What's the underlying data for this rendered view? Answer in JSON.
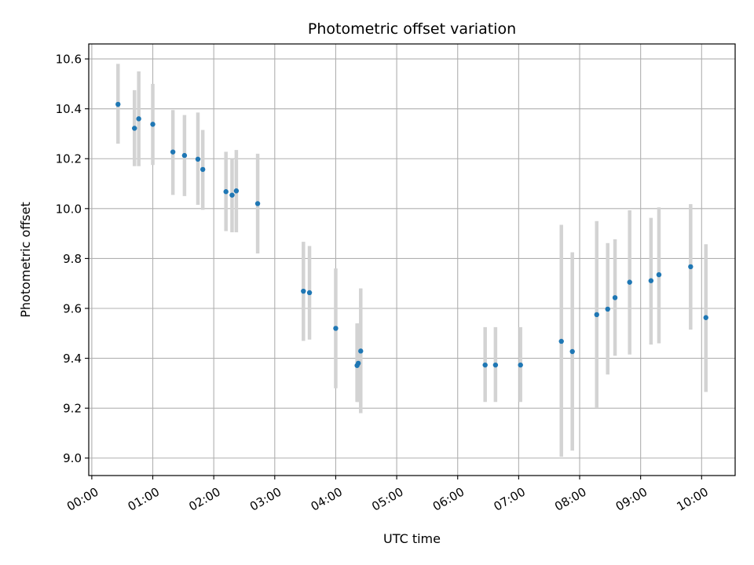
{
  "chart_data": {
    "type": "scatter",
    "title": "Photometric offset variation",
    "xlabel": "UTC time",
    "ylabel": "Photometric offset",
    "x_unit": "hours",
    "xlim": [
      -0.05,
      10.55
    ],
    "ylim": [
      8.93,
      10.66
    ],
    "x_ticks": [
      {
        "value": 0,
        "label": "00:00"
      },
      {
        "value": 1,
        "label": "01:00"
      },
      {
        "value": 2,
        "label": "02:00"
      },
      {
        "value": 3,
        "label": "03:00"
      },
      {
        "value": 4,
        "label": "04:00"
      },
      {
        "value": 5,
        "label": "05:00"
      },
      {
        "value": 6,
        "label": "06:00"
      },
      {
        "value": 7,
        "label": "07:00"
      },
      {
        "value": 8,
        "label": "08:00"
      },
      {
        "value": 9,
        "label": "09:00"
      },
      {
        "value": 10,
        "label": "10:00"
      }
    ],
    "y_ticks": [
      {
        "value": 9.0,
        "label": "9.0"
      },
      {
        "value": 9.2,
        "label": "9.2"
      },
      {
        "value": 9.4,
        "label": "9.4"
      },
      {
        "value": 9.6,
        "label": "9.6"
      },
      {
        "value": 9.8,
        "label": "9.8"
      },
      {
        "value": 10.0,
        "label": "10.0"
      },
      {
        "value": 10.2,
        "label": "10.2"
      },
      {
        "value": 10.4,
        "label": "10.4"
      },
      {
        "value": 10.6,
        "label": "10.6"
      }
    ],
    "grid": true,
    "point_color": "#1f77b4",
    "errorbar_color": "#d3d3d3",
    "points": [
      {
        "x": 0.43,
        "y": 10.418,
        "low": 10.26,
        "high": 10.58
      },
      {
        "x": 0.7,
        "y": 10.322,
        "low": 10.17,
        "high": 10.475
      },
      {
        "x": 0.77,
        "y": 10.36,
        "low": 10.17,
        "high": 10.55
      },
      {
        "x": 1.0,
        "y": 10.338,
        "low": 10.175,
        "high": 10.5
      },
      {
        "x": 1.33,
        "y": 10.227,
        "low": 10.055,
        "high": 10.395
      },
      {
        "x": 1.52,
        "y": 10.213,
        "low": 10.05,
        "high": 10.375
      },
      {
        "x": 1.74,
        "y": 10.198,
        "low": 10.015,
        "high": 10.385
      },
      {
        "x": 1.82,
        "y": 10.157,
        "low": 9.995,
        "high": 10.315
      },
      {
        "x": 2.2,
        "y": 10.068,
        "low": 9.91,
        "high": 10.228
      },
      {
        "x": 2.3,
        "y": 10.054,
        "low": 9.905,
        "high": 10.2
      },
      {
        "x": 2.37,
        "y": 10.071,
        "low": 9.905,
        "high": 10.235
      },
      {
        "x": 2.72,
        "y": 10.02,
        "low": 9.82,
        "high": 10.22
      },
      {
        "x": 3.47,
        "y": 9.669,
        "low": 9.47,
        "high": 9.867
      },
      {
        "x": 3.57,
        "y": 9.663,
        "low": 9.475,
        "high": 9.85
      },
      {
        "x": 4.0,
        "y": 9.52,
        "low": 9.28,
        "high": 9.76
      },
      {
        "x": 4.35,
        "y": 9.371,
        "low": 9.225,
        "high": 9.54
      },
      {
        "x": 4.37,
        "y": 9.38,
        "low": 9.225,
        "high": 9.54
      },
      {
        "x": 4.41,
        "y": 9.429,
        "low": 9.18,
        "high": 9.68
      },
      {
        "x": 6.45,
        "y": 9.373,
        "low": 9.225,
        "high": 9.525
      },
      {
        "x": 6.62,
        "y": 9.373,
        "low": 9.225,
        "high": 9.525
      },
      {
        "x": 7.03,
        "y": 9.373,
        "low": 9.225,
        "high": 9.525
      },
      {
        "x": 7.7,
        "y": 9.468,
        "low": 9.005,
        "high": 9.935
      },
      {
        "x": 7.88,
        "y": 9.427,
        "low": 9.03,
        "high": 9.825
      },
      {
        "x": 8.28,
        "y": 9.575,
        "low": 9.2,
        "high": 9.95
      },
      {
        "x": 8.46,
        "y": 9.597,
        "low": 9.335,
        "high": 9.862
      },
      {
        "x": 8.58,
        "y": 9.643,
        "low": 9.41,
        "high": 9.877
      },
      {
        "x": 8.82,
        "y": 9.705,
        "low": 9.415,
        "high": 9.993
      },
      {
        "x": 9.17,
        "y": 9.711,
        "low": 9.455,
        "high": 9.963
      },
      {
        "x": 9.3,
        "y": 9.735,
        "low": 9.46,
        "high": 10.005
      },
      {
        "x": 9.82,
        "y": 9.767,
        "low": 9.515,
        "high": 10.018
      },
      {
        "x": 10.07,
        "y": 9.563,
        "low": 9.265,
        "high": 9.857
      }
    ]
  }
}
